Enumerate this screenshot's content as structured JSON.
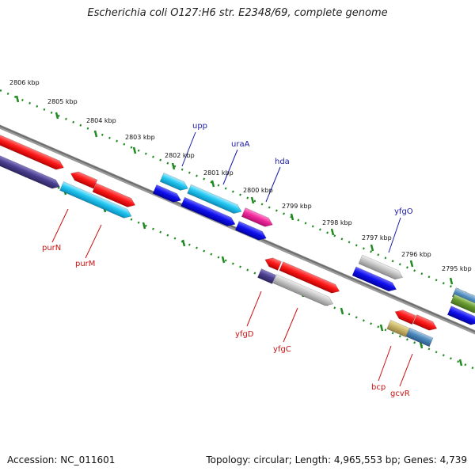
{
  "title": "Escherichia coli O127:H6 str. E2348/69, complete genome",
  "footer": {
    "accession": "Accession: NC_011601",
    "summary": "Topology: circular; Length: 4,965,553 bp; Genes: 4,739"
  },
  "scale": {
    "unit": "kbp",
    "ticks": [
      "2806 kbp",
      "2805 kbp",
      "2804 kbp",
      "2803 kbp",
      "2802 kbp",
      "2801 kbp",
      "2800 kbp",
      "2799 kbp",
      "2798 kbp",
      "2797 kbp",
      "2796 kbp",
      "2795 kbp"
    ]
  },
  "genes": {
    "forward_labels": [
      "upp",
      "uraA",
      "hda",
      "yfgO"
    ],
    "reverse_labels": [
      "purN",
      "purM",
      "yfgD",
      "yfgC",
      "bcp",
      "gcvR"
    ]
  },
  "colors": {
    "label_forward": "#1a1aa8",
    "label_reverse": "#cc1111",
    "tick_green": "#1f8a1f",
    "backbone": "#808080"
  }
}
